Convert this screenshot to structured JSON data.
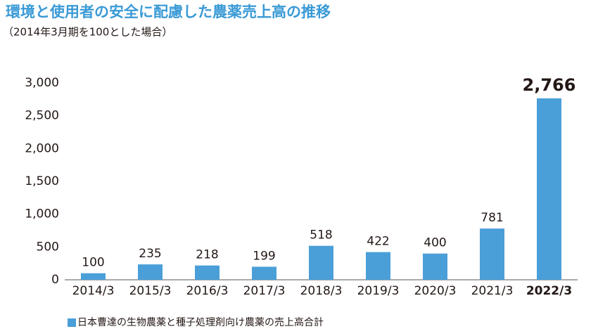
{
  "chart_data": {
    "type": "bar",
    "title": "環境と使用者の安全に配慮した農薬売上高の推移",
    "subtitle": "（2014年3月期を100とした場合）",
    "categories": [
      "2014/3",
      "2015/3",
      "2016/3",
      "2017/3",
      "2018/3",
      "2019/3",
      "2020/3",
      "2021/3",
      "2022/3"
    ],
    "series": [
      {
        "name": "日本曹達の生物農薬と種子処理剤向け農薬の売上高合計",
        "color": "#4a9fd8",
        "values": [
          100,
          235,
          218,
          199,
          518,
          422,
          400,
          781,
          2766
        ],
        "value_labels": [
          "100",
          "235",
          "218",
          "199",
          "518",
          "422",
          "400",
          "781",
          "2,766"
        ]
      }
    ],
    "ylim": [
      0,
      3000
    ],
    "yticks": [
      0,
      500,
      {
        "value": 1000,
        "label": "1,000"
      },
      {
        "value": 1500,
        "label": "1,500"
      },
      {
        "value": 2000,
        "label": "2,000"
      },
      {
        "value": 2500,
        "label": "2,500"
      },
      {
        "value": 3000,
        "label": "3,000"
      }
    ],
    "grid": false
  }
}
